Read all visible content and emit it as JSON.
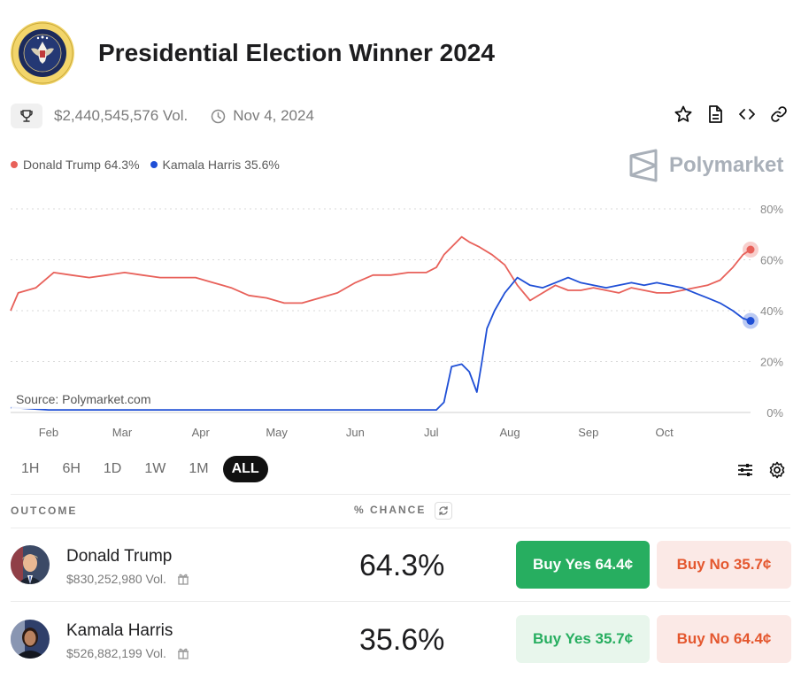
{
  "header": {
    "title": "Presidential Election Winner 2024",
    "seal_icon": "presidential-seal"
  },
  "meta": {
    "volume": "$2,440,545,576 Vol.",
    "date": "Nov 4, 2024"
  },
  "legend": [
    {
      "label": "Donald Trump 64.3%",
      "color": "#e8615a"
    },
    {
      "label": "Kamala Harris 35.6%",
      "color": "#1f4fd6"
    }
  ],
  "brand": "Polymarket",
  "source": "Source: Polymarket.com",
  "chart_data": {
    "type": "line",
    "y_ticks": [
      "80%",
      "60%",
      "40%",
      "20%",
      "0%"
    ],
    "ylim": [
      0,
      80
    ],
    "x_ticks": [
      "Feb",
      "Mar",
      "Apr",
      "May",
      "Jun",
      "Jul",
      "Aug",
      "Sep",
      "Oct"
    ],
    "grid": true,
    "series": [
      {
        "name": "Donald Trump",
        "color": "#e8615a",
        "x": [
          "Jan 17",
          "Jan 20",
          "Jan 27",
          "Feb 3",
          "Feb 10",
          "Feb 17",
          "Feb 24",
          "Mar 2",
          "Mar 9",
          "Mar 16",
          "Mar 23",
          "Mar 30",
          "Apr 6",
          "Apr 13",
          "Apr 20",
          "Apr 27",
          "May 4",
          "May 11",
          "May 18",
          "May 25",
          "Jun 1",
          "Jun 8",
          "Jun 15",
          "Jun 22",
          "Jun 29",
          "Jul 3",
          "Jul 6",
          "Jul 9",
          "Jul 13",
          "Jul 16",
          "Jul 20",
          "Jul 25",
          "Jul 30",
          "Aug 4",
          "Aug 9",
          "Aug 14",
          "Aug 19",
          "Aug 24",
          "Aug 29",
          "Sep 3",
          "Sep 8",
          "Sep 13",
          "Sep 18",
          "Sep 23",
          "Sep 28",
          "Oct 3",
          "Oct 8",
          "Oct 13",
          "Oct 18",
          "Oct 23",
          "Oct 28",
          "Nov 1",
          "Nov 4"
        ],
        "values": [
          40,
          47,
          49,
          55,
          54,
          53,
          54,
          55,
          54,
          53,
          53,
          53,
          51,
          49,
          46,
          45,
          43,
          43,
          45,
          47,
          51,
          54,
          54,
          55,
          55,
          57,
          62,
          65,
          69,
          67,
          65,
          62,
          58,
          50,
          44,
          47,
          50,
          48,
          48,
          49,
          48,
          47,
          49,
          48,
          47,
          47,
          48,
          49,
          50,
          52,
          57,
          62,
          64
        ]
      },
      {
        "name": "Kamala Harris",
        "color": "#1f4fd6",
        "x": [
          "Jan 17",
          "Feb 1",
          "Mar 1",
          "Apr 1",
          "May 1",
          "Jun 1",
          "Jun 20",
          "Jul 3",
          "Jul 6",
          "Jul 9",
          "Jul 13",
          "Jul 16",
          "Jul 19",
          "Jul 21",
          "Jul 23",
          "Jul 26",
          "Jul 30",
          "Aug 4",
          "Aug 9",
          "Aug 14",
          "Aug 19",
          "Aug 24",
          "Aug 29",
          "Sep 3",
          "Sep 8",
          "Sep 13",
          "Sep 18",
          "Sep 23",
          "Sep 28",
          "Oct 3",
          "Oct 8",
          "Oct 13",
          "Oct 18",
          "Oct 23",
          "Oct 28",
          "Nov 1",
          "Nov 4"
        ],
        "values": [
          2,
          1,
          1,
          1,
          1,
          1,
          1,
          1,
          4,
          18,
          19,
          16,
          8,
          20,
          33,
          40,
          47,
          53,
          50,
          49,
          51,
          53,
          51,
          50,
          49,
          50,
          51,
          50,
          51,
          50,
          49,
          47,
          45,
          43,
          40,
          37,
          36
        ]
      }
    ]
  },
  "ranges": [
    "1H",
    "6H",
    "1D",
    "1W",
    "1M",
    "ALL"
  ],
  "active_range": "ALL",
  "table": {
    "outcome_header": "OUTCOME",
    "chance_header": "% CHANCE",
    "rows": [
      {
        "name": "Donald Trump",
        "volume": "$830,252,980 Vol.",
        "chance": "64.3%",
        "buy_yes": "Buy Yes 64.4¢",
        "buy_no": "Buy No 35.7¢"
      },
      {
        "name": "Kamala Harris",
        "volume": "$526,882,199 Vol.",
        "chance": "35.6%",
        "buy_yes": "Buy Yes 35.7¢",
        "buy_no": "Buy No 64.4¢"
      }
    ]
  },
  "colors": {
    "trump": "#e8615a",
    "harris": "#1f4fd6",
    "yes": "#27ae60",
    "no": "#e4572e"
  }
}
